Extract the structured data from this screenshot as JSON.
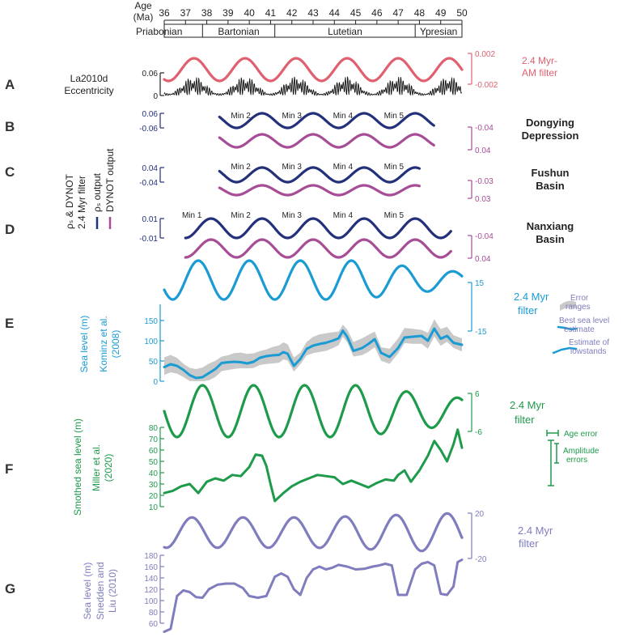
{
  "header": {
    "age_label_1": "Age",
    "age_label_2": "(Ma)",
    "ticks": [
      "36",
      "37",
      "38",
      "39",
      "40",
      "41",
      "42",
      "43",
      "44",
      "45",
      "46",
      "47",
      "48",
      "49",
      "50"
    ],
    "stages": [
      {
        "name": "Priabonian",
        "from": 36,
        "to": 37.8
      },
      {
        "name": "Bartonian",
        "from": 37.8,
        "to": 41.2
      },
      {
        "name": "Lutetian",
        "from": 41.2,
        "to": 47.8
      },
      {
        "name": "Ypresian",
        "from": 47.8,
        "to": 50
      }
    ]
  },
  "panels": {
    "A": {
      "letter": "A",
      "title_1": "La2010d",
      "title_2": "Eccentricity",
      "ecc_ticks": [
        "0.06",
        "0"
      ],
      "filter_ticks": [
        "0.002",
        "-0.002"
      ],
      "filter_label_1": "2.4 Myr-",
      "filter_label_2": "AM filter"
    },
    "B": {
      "letter": "B",
      "left_ticks": [
        "0.06",
        "-0.06"
      ],
      "right_ticks": [
        "-0.04",
        "0.04"
      ],
      "site_1": "Dongying",
      "site_2": "Depression",
      "mins": [
        "Min 2",
        "Min 3",
        "Min 4",
        "Min 5"
      ]
    },
    "C": {
      "letter": "C",
      "left_ticks": [
        "0.04",
        "-0.04"
      ],
      "right_ticks": [
        "-0.03",
        "0.03"
      ],
      "site_1": "Fushun",
      "site_2": "Basin",
      "mins": [
        "Min 2",
        "Min 3",
        "Min 4",
        "Min 5"
      ]
    },
    "D": {
      "letter": "D",
      "left_ticks": [
        "0.01",
        "-0.01"
      ],
      "right_ticks": [
        "-0.04",
        "0.04"
      ],
      "site_1": "Nanxiang",
      "site_2": "Basin",
      "mins": [
        "Min 1",
        "Min 2",
        "Min 3",
        "Min 4",
        "Min 5"
      ]
    },
    "BD": {
      "axis_title_1": "ρₛ & DYNOT",
      "axis_title_2": "2.4 Myr filter",
      "legend_1": "ρₛ output",
      "legend_2": "DYNOT output"
    },
    "E": {
      "letter": "E",
      "ylabel": "Sea level (m)",
      "source_1": "Kominz et al.",
      "source_2": "(2008)",
      "sl_ticks": [
        "150",
        "100",
        "50",
        "0"
      ],
      "filter_ticks": [
        "15",
        "-15"
      ],
      "filter_label_1": "2.4 Myr",
      "filter_label_2": "filter",
      "legend_1": "Error",
      "legend_1b": "ranges",
      "legend_2": "Best sea level",
      "legend_2b": "estimate",
      "legend_3": "Estimate of",
      "legend_3b": "lowstands"
    },
    "F": {
      "letter": "F",
      "ylabel": "Smothed sea level (m)",
      "source_1": "Miller et al.",
      "source_2": "(2020)",
      "sl_ticks": [
        "80",
        "70",
        "60",
        "50",
        "40",
        "30",
        "20",
        "10"
      ],
      "filter_ticks": [
        "6",
        "-6"
      ],
      "filter_label_1": "2.4 Myr",
      "filter_label_2": "filter",
      "legend_1": "Age error",
      "legend_2": "Amplitude",
      "legend_2b": "errors"
    },
    "G": {
      "letter": "G",
      "ylabel": "Sea level (m)",
      "source_1": "Snedden and",
      "source_2": "Liu (2010)",
      "sl_ticks": [
        "180",
        "160",
        "140",
        "120",
        "100",
        "80",
        "60"
      ],
      "filter_ticks": [
        "20",
        "-20"
      ],
      "filter_label_1": "2.4 Myr",
      "filter_label_2": "filter"
    }
  },
  "colors": {
    "eccentricity": "#111111",
    "am_filter": "#e0606f",
    "rho": "#23307a",
    "dynot": "#a64d96",
    "kominz": "#1a9bd3",
    "error_band": "#c9c9c9",
    "miller": "#1e9a4b",
    "snedden": "#7f7dbd",
    "label": "#333333"
  },
  "chart_data": [
    {
      "type": "line",
      "title": "La2010d Eccentricity",
      "x_range": [
        36,
        50
      ],
      "ylim": [
        0,
        0.06
      ],
      "series": [
        {
          "name": "",
          "note": "high-frequency eccentricity oscillation"
        }
      ]
    },
    {
      "type": "line",
      "title": "2.4 Myr-AM filter",
      "x_range": [
        36,
        50
      ],
      "ylim": [
        -0.002,
        0.002
      ],
      "series": [
        {
          "name": "2.4 Myr-AM filter",
          "peaks_ma": [
            37.4,
            39.8,
            42.2,
            44.6,
            47.1,
            49.5
          ]
        }
      ]
    },
    {
      "type": "line",
      "title": "Dongying Depression",
      "x_range": [
        38.5,
        48.5
      ],
      "series": [
        {
          "name": "ρₛ output",
          "ylim": [
            -0.06,
            0.06
          ]
        },
        {
          "name": "DYNOT output",
          "ylim": [
            0.04,
            -0.04
          ]
        }
      ],
      "minima": [
        "Min 2",
        "Min 3",
        "Min 4",
        "Min 5"
      ]
    },
    {
      "type": "line",
      "title": "Fushun Basin",
      "x_range": [
        38.5,
        48
      ],
      "series": [
        {
          "name": "ρₛ output",
          "ylim": [
            -0.04,
            0.04
          ]
        },
        {
          "name": "DYNOT output",
          "ylim": [
            0.03,
            -0.03
          ]
        }
      ],
      "minima": [
        "Min 2",
        "Min 3",
        "Min 4",
        "Min 5"
      ]
    },
    {
      "type": "line",
      "title": "Nanxiang Basin",
      "x_range": [
        37,
        49.5
      ],
      "series": [
        {
          "name": "ρₛ output",
          "ylim": [
            -0.01,
            0.01
          ]
        },
        {
          "name": "DYNOT output",
          "ylim": [
            0.04,
            -0.04
          ]
        }
      ],
      "minima": [
        "Min 1",
        "Min 2",
        "Min 3",
        "Min 4",
        "Min 5"
      ]
    },
    {
      "type": "line",
      "title": "Kominz et al. (2008)",
      "x_range": [
        36,
        50
      ],
      "ylabel": "Sea level (m)",
      "ylim": [
        0,
        190
      ],
      "series": [
        {
          "name": "Best sea level estimate",
          "points": [
            [
              36,
              35
            ],
            [
              36.3,
              42
            ],
            [
              36.6,
              38
            ],
            [
              36.9,
              28
            ],
            [
              37.2,
              15
            ],
            [
              37.5,
              8
            ],
            [
              37.8,
              10
            ],
            [
              38.1,
              20
            ],
            [
              38.4,
              30
            ],
            [
              38.7,
              45
            ],
            [
              39,
              47
            ],
            [
              39.3,
              48
            ],
            [
              39.6,
              47
            ],
            [
              39.9,
              44
            ],
            [
              40.2,
              48
            ],
            [
              40.5,
              58
            ],
            [
              40.8,
              62
            ],
            [
              41.1,
              64
            ],
            [
              41.4,
              65
            ],
            [
              41.6,
              72
            ],
            [
              41.8,
              68
            ],
            [
              42.1,
              38
            ],
            [
              42.4,
              55
            ],
            [
              42.7,
              80
            ],
            [
              43,
              88
            ],
            [
              43.3,
              92
            ],
            [
              43.6,
              95
            ],
            [
              43.9,
              100
            ],
            [
              44.2,
              106
            ],
            [
              44.4,
              125
            ],
            [
              44.6,
              110
            ],
            [
              44.9,
              75
            ],
            [
              45.3,
              82
            ],
            [
              45.6,
              92
            ],
            [
              45.9,
              104
            ],
            [
              46.2,
              70
            ],
            [
              46.6,
              60
            ],
            [
              47,
              82
            ],
            [
              47.3,
              108
            ],
            [
              47.7,
              110
            ],
            [
              48.1,
              112
            ],
            [
              48.4,
              100
            ],
            [
              48.7,
              130
            ],
            [
              49,
              105
            ],
            [
              49.3,
              112
            ],
            [
              49.6,
              95
            ],
            [
              50,
              90
            ]
          ]
        },
        {
          "name": "2.4 Myr filter",
          "ylim": [
            -15,
            15
          ]
        }
      ]
    },
    {
      "type": "line",
      "title": "Miller et al. (2020)",
      "x_range": [
        36,
        50
      ],
      "ylabel": "Smothed sea level (m)",
      "ylim": [
        10,
        80
      ],
      "series": [
        {
          "name": "Smothed sea level",
          "points": [
            [
              36,
              22
            ],
            [
              36.4,
              24
            ],
            [
              36.8,
              28
            ],
            [
              37.2,
              30
            ],
            [
              37.6,
              22
            ],
            [
              38,
              32
            ],
            [
              38.4,
              35
            ],
            [
              38.8,
              33
            ],
            [
              39.2,
              38
            ],
            [
              39.6,
              37
            ],
            [
              40,
              45
            ],
            [
              40.3,
              56
            ],
            [
              40.6,
              55
            ],
            [
              40.8,
              46
            ],
            [
              41,
              30
            ],
            [
              41.2,
              15
            ],
            [
              41.6,
              22
            ],
            [
              42,
              28
            ],
            [
              42.4,
              32
            ],
            [
              42.8,
              35
            ],
            [
              43.2,
              38
            ],
            [
              43.6,
              37
            ],
            [
              44,
              36
            ],
            [
              44.4,
              30
            ],
            [
              44.8,
              33
            ],
            [
              45.2,
              30
            ],
            [
              45.6,
              27
            ],
            [
              46,
              31
            ],
            [
              46.4,
              34
            ],
            [
              46.8,
              33
            ],
            [
              47,
              38
            ],
            [
              47.3,
              42
            ],
            [
              47.6,
              32
            ],
            [
              48,
              42
            ],
            [
              48.4,
              55
            ],
            [
              48.7,
              68
            ],
            [
              49,
              60
            ],
            [
              49.3,
              50
            ],
            [
              49.6,
              65
            ],
            [
              49.8,
              78
            ],
            [
              50,
              62
            ]
          ]
        },
        {
          "name": "2.4 Myr filter",
          "ylim": [
            -6,
            6
          ]
        }
      ]
    },
    {
      "type": "line",
      "title": "Snedden and Liu (2010)",
      "x_range": [
        36,
        50
      ],
      "ylabel": "Sea level (m)",
      "ylim": [
        50,
        180
      ],
      "series": [
        {
          "name": "Sea level",
          "points": [
            [
              36,
              45
            ],
            [
              36.3,
              50
            ],
            [
              36.6,
              108
            ],
            [
              36.9,
              118
            ],
            [
              37.2,
              115
            ],
            [
              37.5,
              106
            ],
            [
              37.8,
              105
            ],
            [
              38.1,
              120
            ],
            [
              38.5,
              128
            ],
            [
              38.9,
              130
            ],
            [
              39.3,
              130
            ],
            [
              39.7,
              122
            ],
            [
              40,
              108
            ],
            [
              40.4,
              105
            ],
            [
              40.8,
              108
            ],
            [
              41.2,
              142
            ],
            [
              41.5,
              148
            ],
            [
              41.8,
              142
            ],
            [
              42.1,
              120
            ],
            [
              42.4,
              110
            ],
            [
              42.7,
              140
            ],
            [
              43,
              155
            ],
            [
              43.3,
              160
            ],
            [
              43.6,
              155
            ],
            [
              43.9,
              158
            ],
            [
              44.2,
              163
            ],
            [
              44.6,
              160
            ],
            [
              45,
              155
            ],
            [
              45.4,
              156
            ],
            [
              45.8,
              160
            ],
            [
              46.1,
              162
            ],
            [
              46.4,
              165
            ],
            [
              46.7,
              162
            ],
            [
              47,
              110
            ],
            [
              47.4,
              110
            ],
            [
              47.8,
              155
            ],
            [
              48.1,
              165
            ],
            [
              48.4,
              168
            ],
            [
              48.7,
              162
            ],
            [
              49,
              112
            ],
            [
              49.3,
              110
            ],
            [
              49.6,
              125
            ],
            [
              49.8,
              168
            ],
            [
              50,
              172
            ]
          ]
        },
        {
          "name": "2.4 Myr filter",
          "ylim": [
            -20,
            20
          ]
        }
      ]
    }
  ]
}
